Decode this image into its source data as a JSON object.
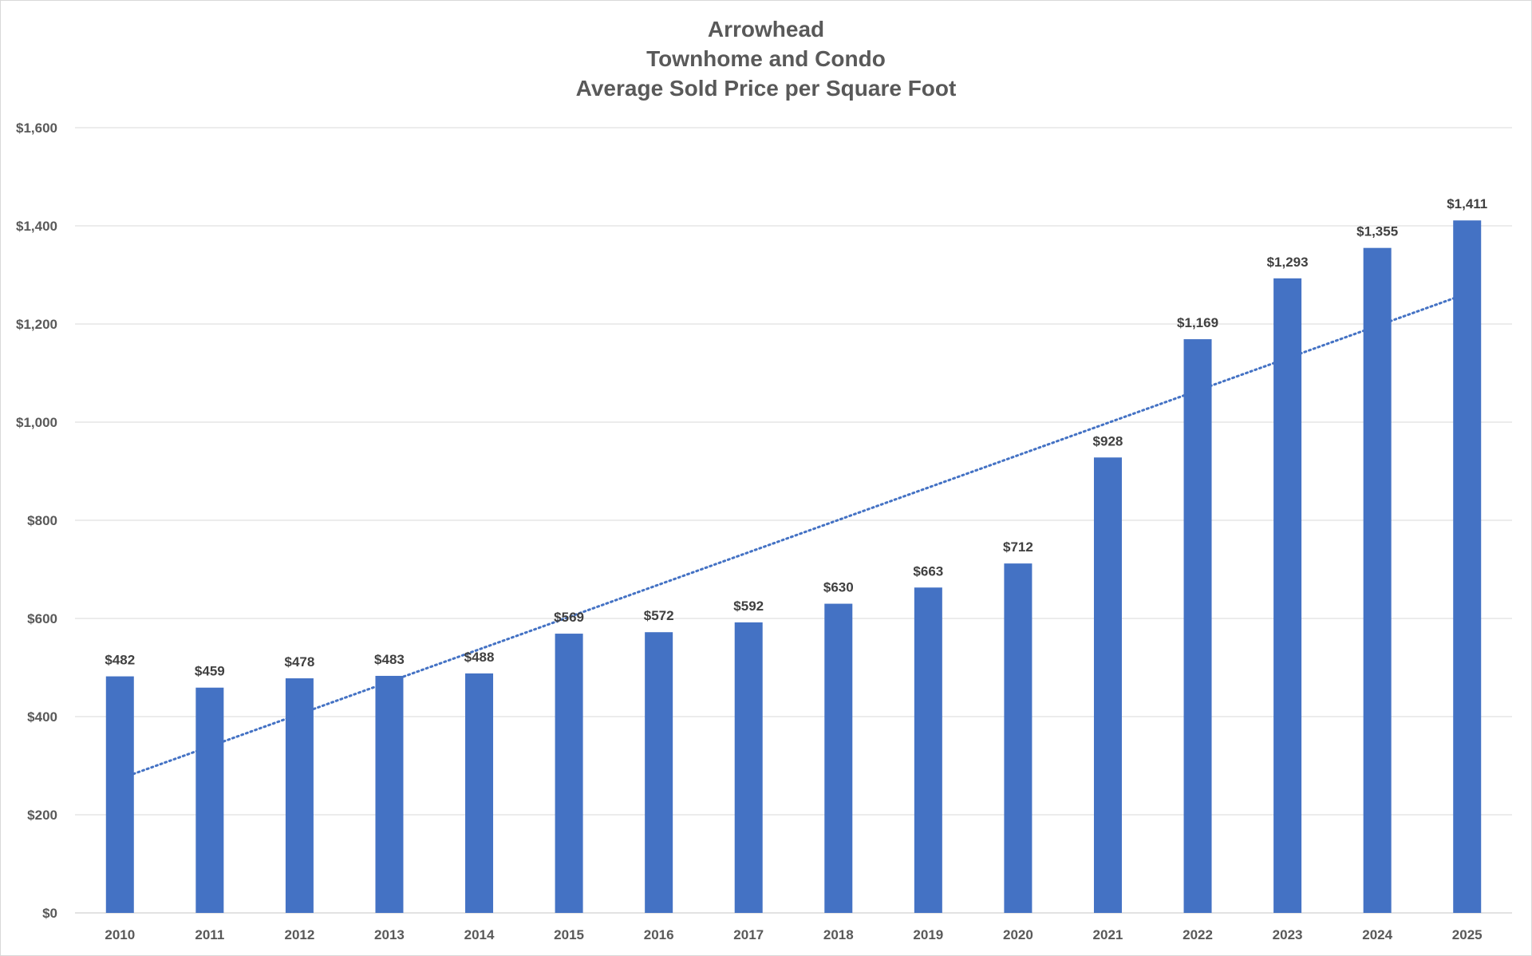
{
  "chart_data": {
    "type": "bar",
    "title": [
      "Arrowhead",
      "Townhome and Condo",
      "Average Sold Price per Square Foot"
    ],
    "xlabel": "",
    "ylabel": "",
    "categories": [
      "2010",
      "2011",
      "2012",
      "2013",
      "2014",
      "2015",
      "2016",
      "2017",
      "2018",
      "2019",
      "2020",
      "2021",
      "2022",
      "2023",
      "2024",
      "2025"
    ],
    "series": [
      {
        "values": [
          482,
          459,
          478,
          483,
          488,
          569,
          572,
          592,
          630,
          663,
          712,
          928,
          1169,
          1293,
          1355,
          1411
        ],
        "data_labels": [
          "$482",
          "$459",
          "$478",
          "$483",
          "$488",
          "$569",
          "$572",
          "$592",
          "$630",
          "$663",
          "$712",
          "$928",
          "$1,169",
          "$1,293",
          "$1,355",
          "$1,411"
        ],
        "color": "#4472c4"
      }
    ],
    "ylim": [
      0,
      1600
    ],
    "y_ticks": [
      0,
      200,
      400,
      600,
      800,
      1000,
      1200,
      1400,
      1600
    ],
    "y_tick_labels": [
      "$0",
      "$200",
      "$400",
      "$600",
      "$800",
      "$1,000",
      "$1,200",
      "$1,400",
      "$1,600"
    ],
    "grid": true,
    "legend": "none",
    "trendline": {
      "type": "linear",
      "style": "dotted",
      "color": "#4472c4"
    },
    "colors": {
      "gridline": "#d9d9d9",
      "axis_text": "#595959",
      "data_label_text": "#404040"
    }
  }
}
